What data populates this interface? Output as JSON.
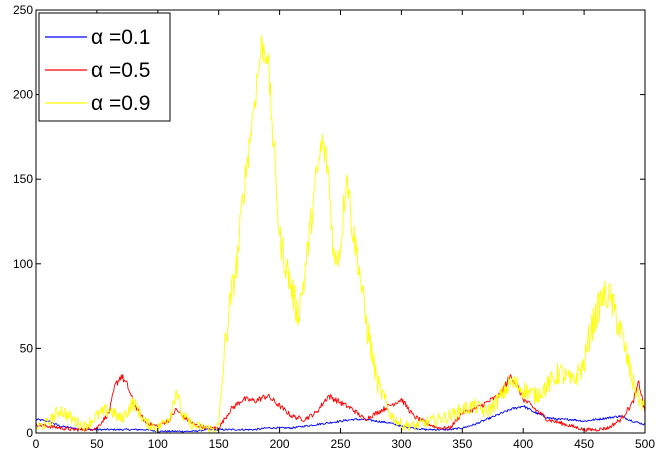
{
  "chart_data": {
    "type": "line",
    "title": "",
    "xlabel": "",
    "ylabel": "",
    "xlim": [
      0,
      500
    ],
    "ylim": [
      0,
      250
    ],
    "xticks": [
      0,
      50,
      100,
      150,
      200,
      250,
      300,
      350,
      400,
      450,
      500
    ],
    "yticks": [
      0,
      50,
      100,
      150,
      200,
      250
    ],
    "grid": false,
    "legend_position": "top-left",
    "series": [
      {
        "name": "α =0.1",
        "color": "#0000ff",
        "x": [
          0,
          10,
          20,
          30,
          40,
          50,
          60,
          70,
          80,
          90,
          100,
          110,
          120,
          130,
          140,
          150,
          160,
          170,
          180,
          190,
          200,
          210,
          220,
          230,
          240,
          250,
          260,
          270,
          280,
          290,
          300,
          310,
          320,
          330,
          340,
          350,
          360,
          370,
          380,
          390,
          400,
          410,
          420,
          430,
          440,
          450,
          460,
          470,
          480,
          490,
          500
        ],
        "y": [
          8,
          7,
          4,
          3,
          2,
          2,
          2,
          2,
          2,
          2,
          1,
          1,
          1,
          1,
          2,
          2,
          2,
          2,
          2,
          3,
          3,
          3,
          4,
          5,
          6,
          7,
          8,
          8,
          7,
          6,
          4,
          3,
          2,
          2,
          2,
          3,
          5,
          8,
          11,
          14,
          16,
          12,
          9,
          8,
          8,
          7,
          8,
          9,
          10,
          7,
          5
        ]
      },
      {
        "name": "α =0.5",
        "color": "#ff0000",
        "x": [
          0,
          10,
          20,
          30,
          40,
          50,
          60,
          65,
          70,
          75,
          80,
          90,
          100,
          110,
          115,
          120,
          130,
          140,
          150,
          160,
          170,
          180,
          190,
          200,
          210,
          220,
          230,
          240,
          250,
          260,
          270,
          280,
          290,
          300,
          310,
          320,
          330,
          340,
          350,
          360,
          370,
          380,
          390,
          395,
          400,
          410,
          420,
          430,
          440,
          450,
          460,
          470,
          480,
          490,
          495,
          500
        ],
        "y": [
          5,
          4,
          3,
          2,
          2,
          3,
          12,
          28,
          34,
          28,
          18,
          6,
          4,
          8,
          14,
          10,
          5,
          3,
          3,
          14,
          20,
          19,
          22,
          16,
          10,
          8,
          12,
          22,
          18,
          14,
          8,
          12,
          16,
          20,
          10,
          6,
          3,
          3,
          12,
          14,
          18,
          22,
          34,
          28,
          20,
          14,
          8,
          6,
          4,
          2,
          2,
          3,
          8,
          18,
          30,
          12
        ]
      },
      {
        "name": "α =0.9",
        "color": "#ffff00",
        "x": [
          0,
          10,
          20,
          30,
          40,
          50,
          60,
          70,
          80,
          90,
          100,
          110,
          115,
          120,
          130,
          140,
          145,
          150,
          155,
          160,
          165,
          170,
          175,
          180,
          185,
          190,
          195,
          200,
          205,
          210,
          215,
          220,
          225,
          230,
          235,
          240,
          245,
          250,
          255,
          260,
          265,
          270,
          275,
          280,
          285,
          290,
          295,
          300,
          310,
          320,
          330,
          340,
          350,
          360,
          370,
          380,
          390,
          400,
          410,
          420,
          430,
          440,
          450,
          455,
          460,
          465,
          470,
          475,
          480,
          485,
          490,
          495,
          500
        ],
        "y": [
          3,
          6,
          14,
          8,
          4,
          10,
          14,
          8,
          18,
          6,
          3,
          10,
          26,
          10,
          4,
          3,
          2,
          4,
          50,
          80,
          100,
          140,
          170,
          200,
          228,
          225,
          170,
          115,
          100,
          85,
          70,
          90,
          120,
          150,
          172,
          155,
          100,
          110,
          155,
          120,
          100,
          70,
          50,
          30,
          22,
          12,
          8,
          5,
          4,
          6,
          8,
          10,
          14,
          16,
          12,
          20,
          30,
          26,
          22,
          28,
          36,
          30,
          40,
          60,
          70,
          80,
          82,
          72,
          60,
          45,
          30,
          20,
          15
        ]
      }
    ]
  }
}
